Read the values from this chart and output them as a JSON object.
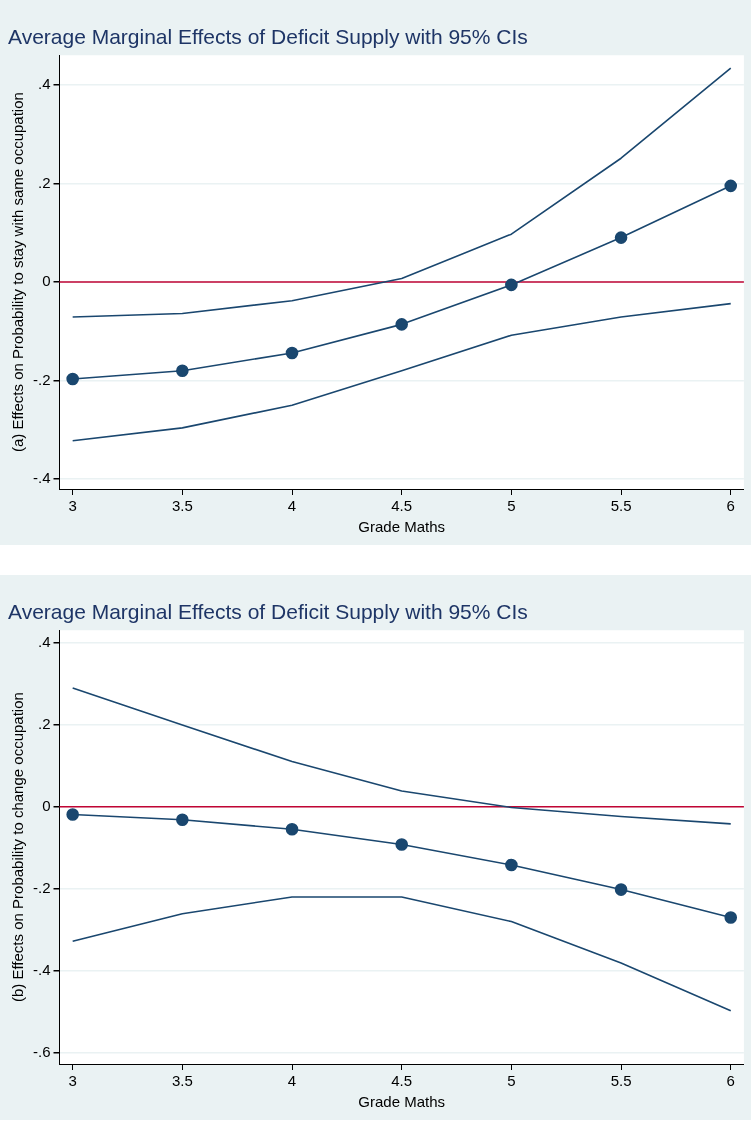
{
  "chart_data": [
    {
      "type": "line",
      "title": "Average Marginal Effects of Deficit Supply with 95% CIs",
      "xlabel": "Grade Maths",
      "ylabel": "(a) Effects on Probability to stay with same occupation",
      "x": [
        3,
        3.5,
        4,
        4.5,
        5,
        5.5,
        6
      ],
      "series": [
        {
          "color": "#1a476f",
          "marker": "circle",
          "values": [
            -0.197,
            -0.18,
            -0.144,
            -0.086,
            -0.006,
            0.09,
            0.195
          ]
        },
        {
          "color": "#1a476f",
          "marker": "none",
          "values": [
            -0.071,
            -0.064,
            -0.038,
            0.007,
            0.097,
            0.251,
            0.434
          ]
        },
        {
          "color": "#1a476f",
          "marker": "none",
          "values": [
            -0.322,
            -0.296,
            -0.25,
            -0.18,
            -0.108,
            -0.071,
            -0.044
          ]
        }
      ],
      "xlim": [
        2.94,
        6.06
      ],
      "xticks": [
        3,
        3.5,
        4,
        4.5,
        5,
        5.5,
        6
      ],
      "ylim": [
        -0.42,
        0.46
      ],
      "yticks": [
        {
          "value": -0.4,
          "label": "-.4"
        },
        {
          "value": -0.2,
          "label": "-.2"
        },
        0,
        {
          "value": 0.2,
          "label": ".2"
        },
        {
          "value": 0.4,
          "label": ".4"
        }
      ],
      "ref_lines": [
        {
          "axis": "y",
          "value": 0,
          "color": "#c10534"
        }
      ],
      "grid": "y",
      "legend": false,
      "line_style": "solid"
    },
    {
      "type": "line",
      "title": "Average Marginal Effects of Deficit Supply with 95% CIs",
      "xlabel": "Grade Maths",
      "ylabel": "(b) Effects on Probability to change occupation",
      "x": [
        3,
        3.5,
        4,
        4.5,
        5,
        5.5,
        6
      ],
      "series": [
        {
          "color": "#1a476f",
          "marker": "circle",
          "values": [
            -0.019,
            -0.032,
            -0.055,
            -0.092,
            -0.142,
            -0.202,
            -0.27
          ]
        },
        {
          "color": "#1a476f",
          "marker": "none",
          "values": [
            0.289,
            0.199,
            0.11,
            0.038,
            -0.002,
            -0.024,
            -0.042
          ]
        },
        {
          "color": "#1a476f",
          "marker": "none",
          "values": [
            -0.328,
            -0.261,
            -0.22,
            -0.22,
            -0.28,
            -0.381,
            -0.497
          ]
        }
      ],
      "xlim": [
        2.94,
        6.06
      ],
      "xticks": [
        3,
        3.5,
        4,
        4.5,
        5,
        5.5,
        6
      ],
      "ylim": [
        -0.627,
        0.43
      ],
      "yticks": [
        {
          "value": -0.6,
          "label": "-.6"
        },
        {
          "value": -0.4,
          "label": "-.4"
        },
        {
          "value": -0.2,
          "label": "-.2"
        },
        0,
        {
          "value": 0.2,
          "label": ".2"
        },
        {
          "value": 0.4,
          "label": ".4"
        }
      ],
      "ref_lines": [
        {
          "axis": "y",
          "value": 0,
          "color": "#c10534"
        }
      ],
      "grid": "y",
      "legend": false,
      "line_style": "solid"
    }
  ]
}
